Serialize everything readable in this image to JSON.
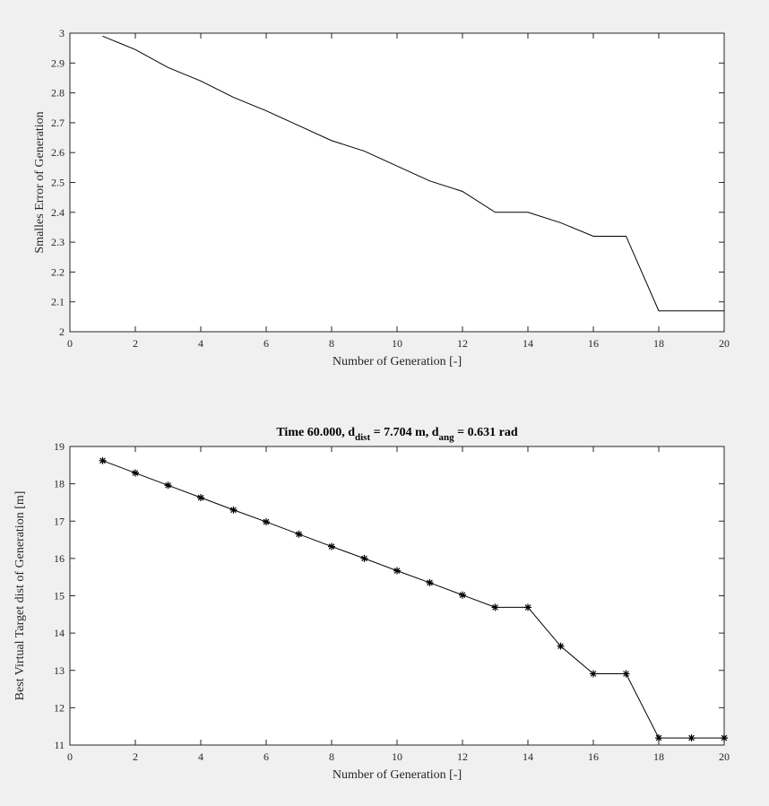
{
  "chart_data": [
    {
      "type": "line",
      "title": "",
      "xlabel": "Number of Generation [-]",
      "ylabel": "Smalles Error of Generation",
      "xlim": [
        0,
        20
      ],
      "ylim": [
        2,
        3
      ],
      "xticks": [
        0,
        2,
        4,
        6,
        8,
        10,
        12,
        14,
        16,
        18,
        20
      ],
      "yticks": [
        2,
        2.1,
        2.2,
        2.3,
        2.4,
        2.5,
        2.6,
        2.7,
        2.8,
        2.9,
        3
      ],
      "ytick_labels": [
        "2",
        "2.1",
        "2.2",
        "2.3",
        "2.4",
        "2.5",
        "2.6",
        "2.7",
        "2.8",
        "2.9",
        "3"
      ],
      "grid": false,
      "markers": false,
      "line_color": "#000000",
      "x": [
        1,
        2,
        3,
        4,
        5,
        6,
        7,
        8,
        9,
        10,
        11,
        12,
        13,
        14,
        15,
        16,
        17,
        18,
        19,
        20
      ],
      "y": [
        2.99,
        2.945,
        2.885,
        2.84,
        2.785,
        2.74,
        2.69,
        2.64,
        2.605,
        2.555,
        2.505,
        2.47,
        2.4,
        2.4,
        2.365,
        2.32,
        2.32,
        2.07,
        2.07,
        2.07
      ]
    },
    {
      "type": "line",
      "title_parts": {
        "main": "Time 60.000, d",
        "sub1": "dist",
        "mid": " = 7.704 m, d",
        "sub2": "ang",
        "end": " = 0.631 rad"
      },
      "xlabel": "Number of Generation [-]",
      "ylabel": "Best Virtual Target dist of Generation [m]",
      "xlim": [
        0,
        20
      ],
      "ylim": [
        11,
        19
      ],
      "xticks": [
        0,
        2,
        4,
        6,
        8,
        10,
        12,
        14,
        16,
        18,
        20
      ],
      "yticks": [
        11,
        12,
        13,
        14,
        15,
        16,
        17,
        18,
        19
      ],
      "ytick_labels": [
        "11",
        "12",
        "13",
        "14",
        "15",
        "16",
        "17",
        "18",
        "19"
      ],
      "grid": false,
      "markers": true,
      "marker": "asterisk",
      "line_color": "#000000",
      "x": [
        1,
        2,
        3,
        4,
        5,
        6,
        7,
        8,
        9,
        10,
        11,
        12,
        13,
        14,
        15,
        16,
        17,
        18,
        19,
        20
      ],
      "y": [
        18.62,
        18.29,
        17.96,
        17.63,
        17.3,
        16.98,
        16.65,
        16.32,
        16.0,
        15.67,
        15.35,
        15.02,
        14.69,
        14.69,
        13.65,
        12.91,
        12.91,
        11.19,
        11.19,
        11.19
      ]
    }
  ]
}
